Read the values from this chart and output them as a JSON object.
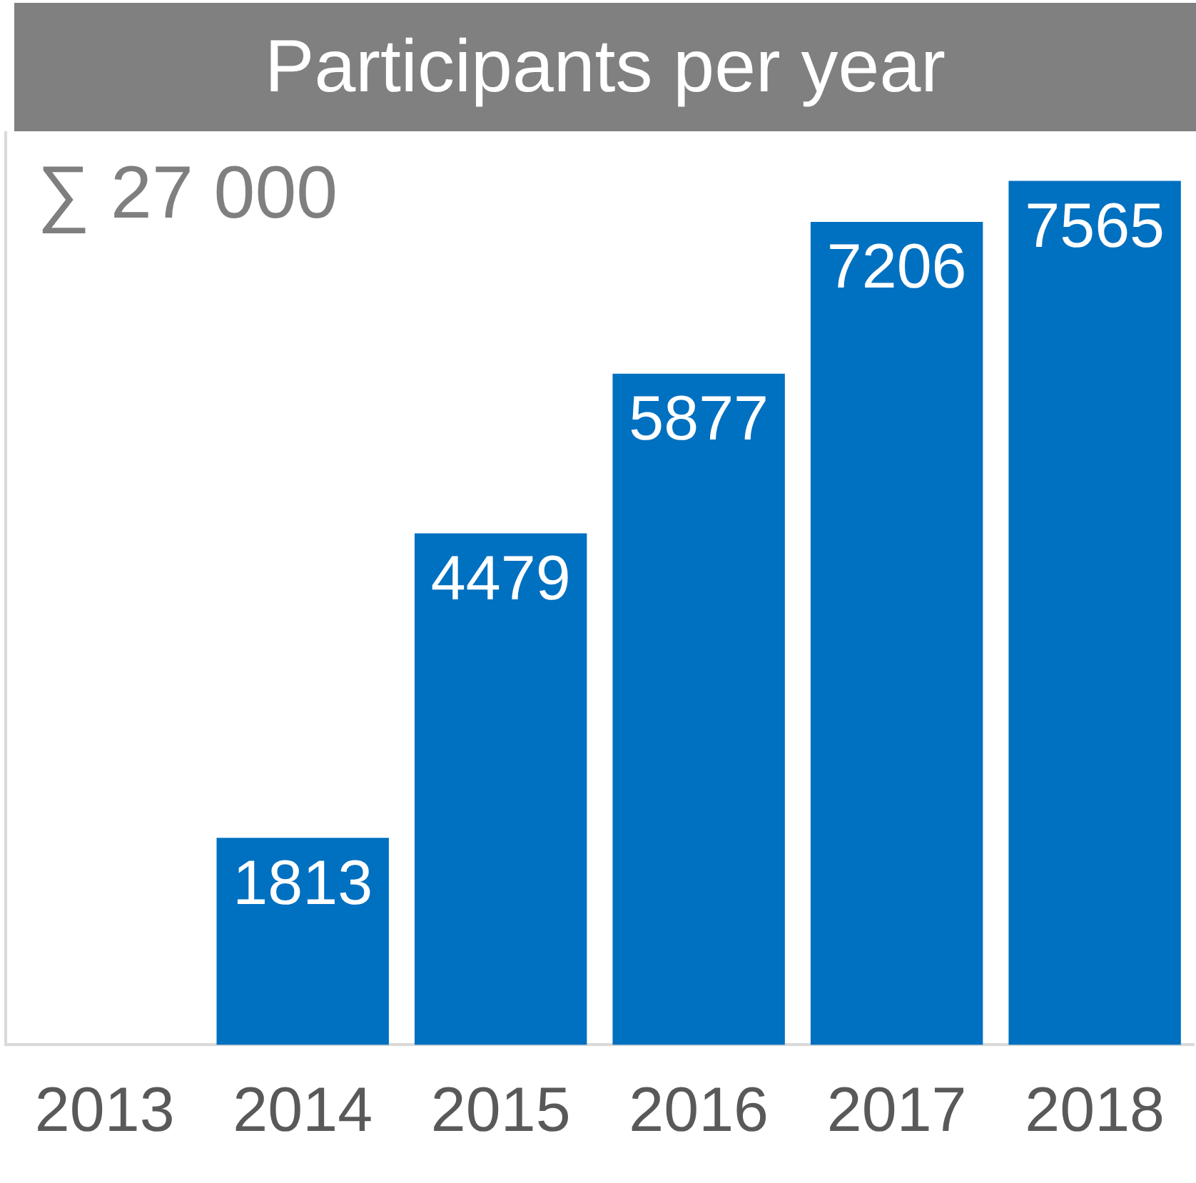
{
  "chart_data": {
    "type": "bar",
    "title": "Participants per year",
    "categories": [
      "2013",
      "2014",
      "2015",
      "2016",
      "2017",
      "2018"
    ],
    "values": [
      null,
      1813,
      4479,
      5877,
      7206,
      7565
    ],
    "color": "#0070c0",
    "data_labels": true,
    "grid": false,
    "legend": false,
    "tick_labels": "x",
    "annotations": [
      "∑ 27 000"
    ]
  }
}
